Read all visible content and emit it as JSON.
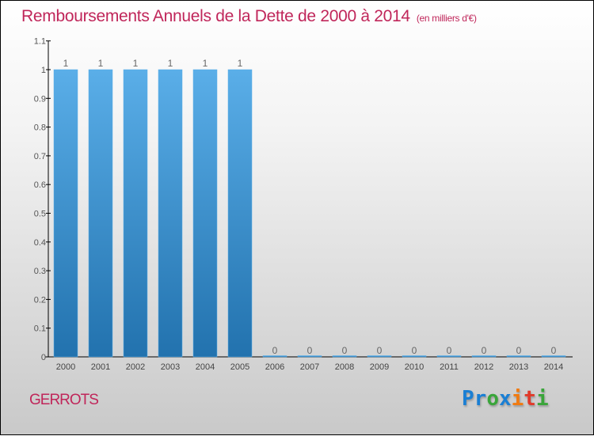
{
  "chart_data": {
    "type": "bar",
    "title": "Remboursements Annuels de la Dette de 2000 à 2014",
    "subtitle": "(en milliers d'€)",
    "categories": [
      "2000",
      "2001",
      "2002",
      "2003",
      "2004",
      "2005",
      "2006",
      "2007",
      "2008",
      "2009",
      "2010",
      "2011",
      "2012",
      "2013",
      "2014"
    ],
    "values": [
      1,
      1,
      1,
      1,
      1,
      1,
      0,
      0,
      0,
      0,
      0,
      0,
      0,
      0,
      0
    ],
    "data_labels": [
      "1",
      "1",
      "1",
      "1",
      "1",
      "1",
      "0",
      "0",
      "0",
      "0",
      "0",
      "0",
      "0",
      "0",
      "0"
    ],
    "yticks": [
      "0",
      "0.1",
      "0.2",
      "0.3",
      "0.4",
      "0.5",
      "0.6",
      "0.7",
      "0.8",
      "0.9",
      "1",
      "1.1"
    ],
    "ylim": [
      0,
      1.1
    ],
    "xlabel": "",
    "ylabel": "",
    "bar_color": "#3a90d0"
  },
  "commune": "GERROTS",
  "logo": {
    "letters": [
      "P",
      "r",
      "o",
      "x",
      "i",
      "t",
      "i"
    ],
    "colors": [
      "#1a7fd4",
      "#1a7fd4",
      "#3aa53a",
      "#1a7fd4",
      "#f07a10",
      "#e03a2a",
      "#3aa53a"
    ]
  }
}
